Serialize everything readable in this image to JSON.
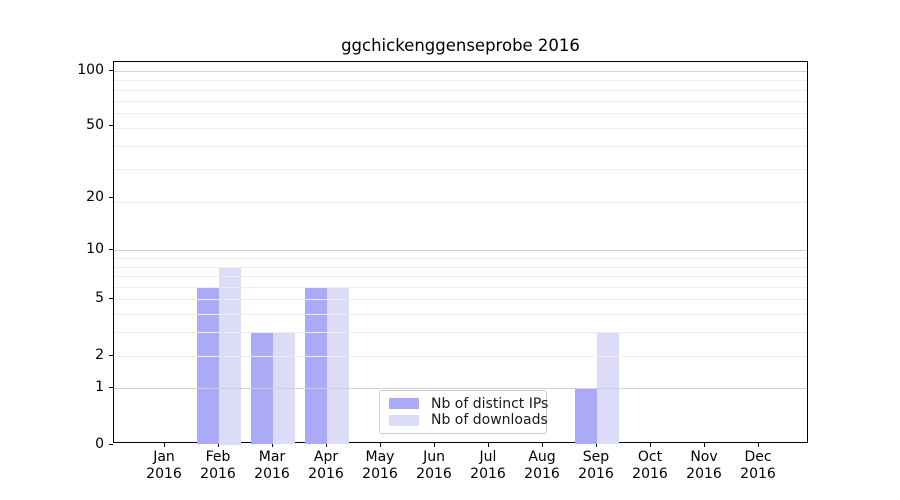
{
  "title": "ggchickenggenseprobe 2016",
  "chart_data": {
    "type": "bar",
    "title": "ggchickenggenseprobe 2016",
    "categories": [
      "Jan",
      "Feb",
      "Mar",
      "Apr",
      "May",
      "Jun",
      "Jul",
      "Aug",
      "Sep",
      "Oct",
      "Nov",
      "Dec"
    ],
    "category_year": "2016",
    "series": [
      {
        "name": "Nb of distinct IPs",
        "color": "#aaaaf6",
        "values": [
          0,
          6,
          3,
          6,
          0,
          0,
          0,
          0,
          1,
          0,
          0,
          0
        ]
      },
      {
        "name": "Nb of downloads",
        "color": "#dcdcf8",
        "values": [
          0,
          8,
          3,
          6,
          0,
          0,
          0,
          0,
          3,
          0,
          0,
          0
        ]
      }
    ],
    "xlabel": "",
    "ylabel": "",
    "y_scale": "log10(1+value)",
    "y_ticks": [
      0,
      1,
      2,
      5,
      10,
      20,
      50,
      100
    ],
    "y_minor_gridlines": [
      2,
      3,
      4,
      5,
      6,
      7,
      8,
      9,
      19,
      29,
      39,
      49,
      59,
      69,
      79,
      89
    ],
    "y_major_gridlines": [
      1,
      10,
      100
    ],
    "ylim": [
      0,
      112
    ],
    "grid": true,
    "legend_position": "lower center",
    "axis_color": "#000000",
    "major_grid_color": "#d2d2d2",
    "minor_grid_color": "#ededed",
    "background_color": "#ffffff"
  }
}
